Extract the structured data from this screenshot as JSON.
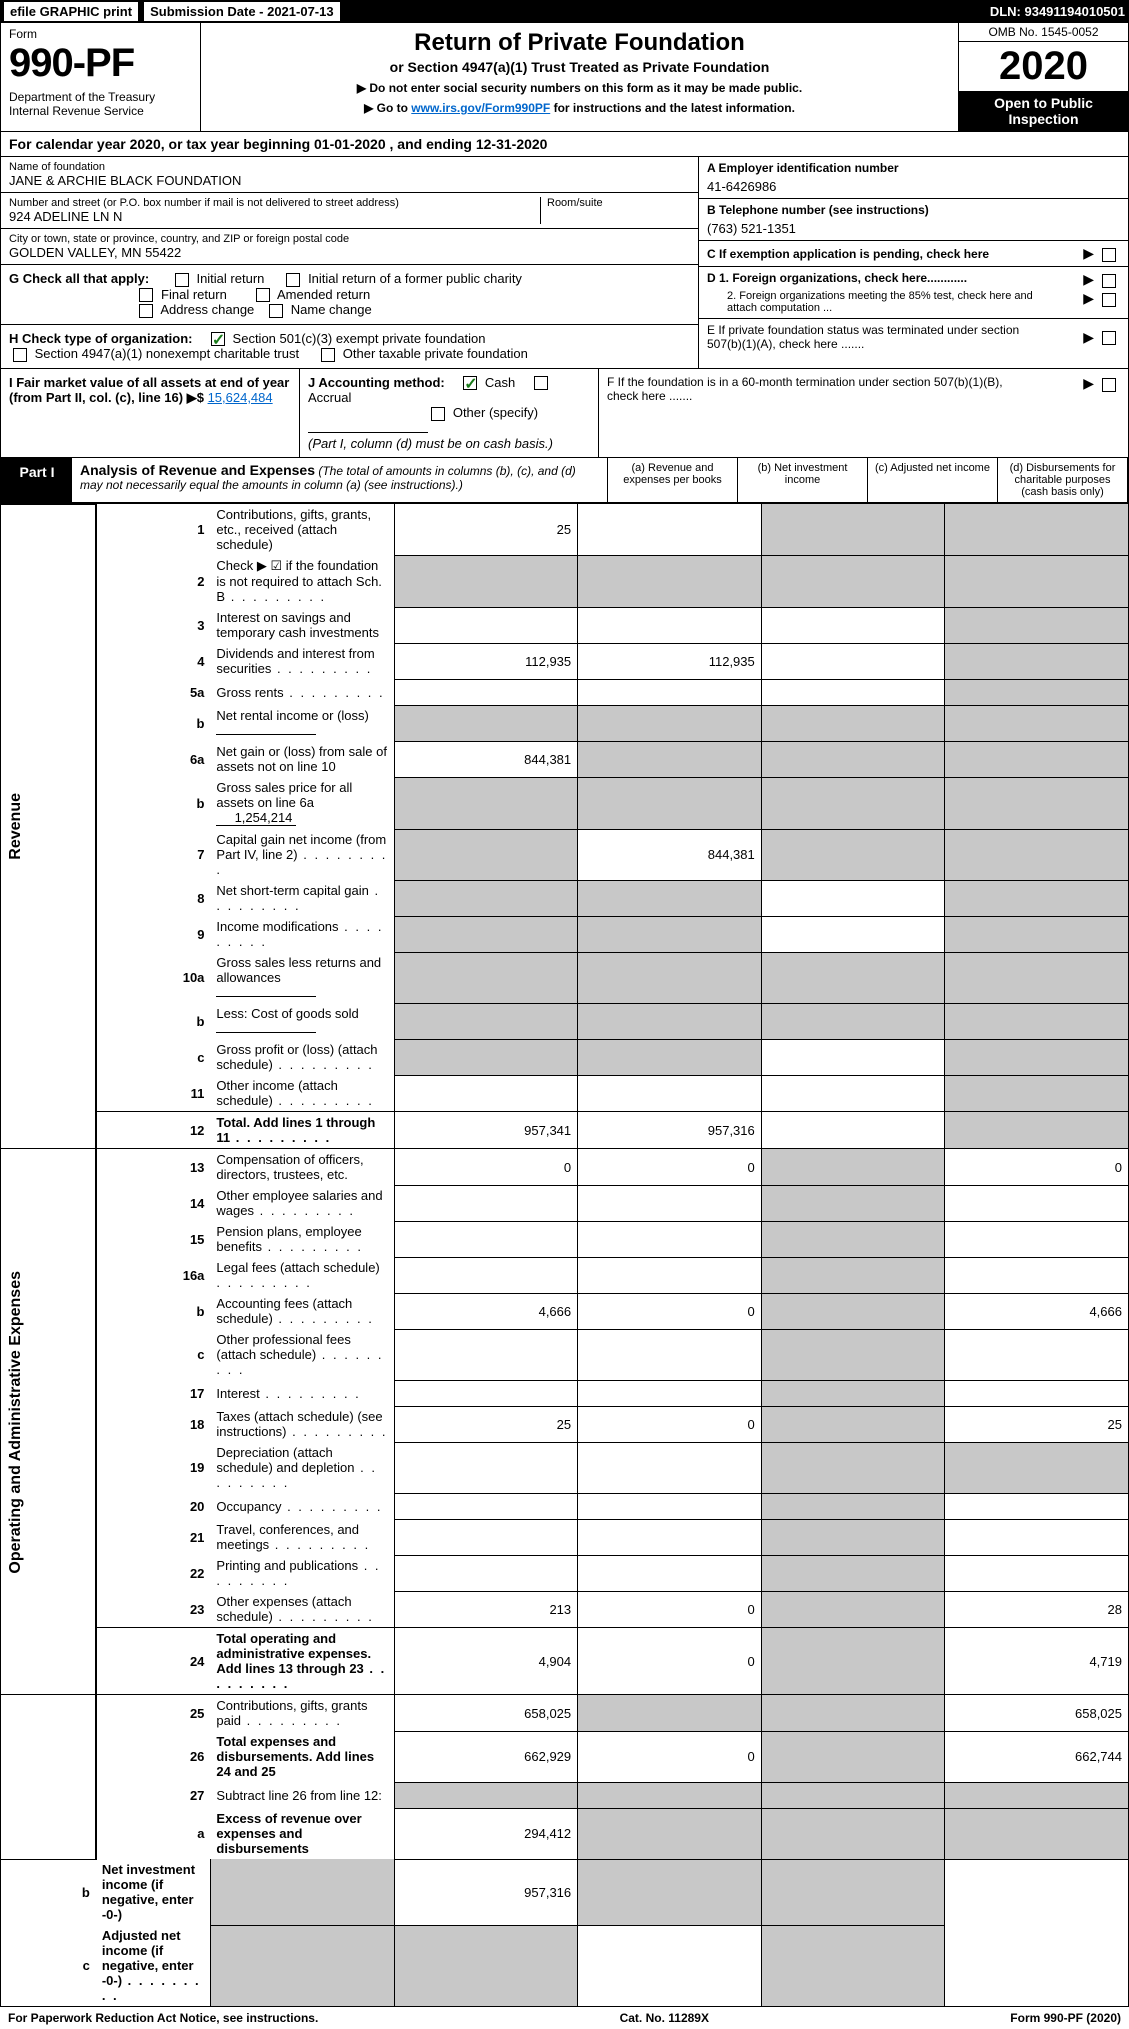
{
  "topbar": {
    "efile": "efile GRAPHIC print",
    "submission": "Submission Date - 2021-07-13",
    "dln": "DLN: 93491194010501"
  },
  "header": {
    "form_label": "Form",
    "form_no": "990-PF",
    "dept": "Department of the Treasury\nInternal Revenue Service",
    "title": "Return of Private Foundation",
    "subtitle": "or Section 4947(a)(1) Trust Treated as Private Foundation",
    "note1": "▶ Do not enter social security numbers on this form as it may be made public.",
    "note2_prefix": "▶ Go to ",
    "note2_link": "www.irs.gov/Form990PF",
    "note2_suffix": " for instructions and the latest information.",
    "omb": "OMB No. 1545-0052",
    "year": "2020",
    "open": "Open to Public Inspection"
  },
  "cal_year": "For calendar year 2020, or tax year beginning 01-01-2020               , and ending 12-31-2020",
  "info": {
    "name_label": "Name of foundation",
    "name": "JANE & ARCHIE BLACK FOUNDATION",
    "addr_label": "Number and street (or P.O. box number if mail is not delivered to street address)",
    "addr": "924 ADELINE LN N",
    "room_label": "Room/suite",
    "city_label": "City or town, state or province, country, and ZIP or foreign postal code",
    "city": "GOLDEN VALLEY, MN  55422",
    "ein_label": "A Employer identification number",
    "ein": "41-6426986",
    "phone_label": "B Telephone number (see instructions)",
    "phone": "(763) 521-1351",
    "c_label": "C If exemption application is pending, check here",
    "d1": "D 1. Foreign organizations, check here............",
    "d2": "2. Foreign organizations meeting the 85% test, check here and attach computation ...",
    "e_label": "E  If private foundation status was terminated under section 507(b)(1)(A), check here .......",
    "f_label": "F  If the foundation is in a 60-month termination under section 507(b)(1)(B), check here .......",
    "g_label": "G Check all that apply:",
    "g_opts": [
      "Initial return",
      "Initial return of a former public charity",
      "Final return",
      "Amended return",
      "Address change",
      "Name change"
    ],
    "h_label": "H Check type of organization:",
    "h_opts": [
      "Section 501(c)(3) exempt private foundation",
      "Section 4947(a)(1) nonexempt charitable trust",
      "Other taxable private foundation"
    ],
    "i_label": "I Fair market value of all assets at end of year (from Part II, col. (c), line 16) ▶$",
    "i_val": "15,624,484",
    "j_label": "J Accounting method:",
    "j_opts": [
      "Cash",
      "Accrual",
      "Other (specify)"
    ],
    "j_note": "(Part I, column (d) must be on cash basis.)"
  },
  "part1": {
    "tab": "Part I",
    "title": "Analysis of Revenue and Expenses",
    "title_note": "(The total of amounts in columns (b), (c), and (d) may not necessarily equal the amounts in column (a) (see instructions).)",
    "cols": [
      "(a)  Revenue and expenses per books",
      "(b)  Net investment income",
      "(c)  Adjusted net income",
      "(d)  Disbursements for charitable purposes (cash basis only)"
    ]
  },
  "rows": [
    {
      "n": "1",
      "d": "Contributions, gifts, grants, etc., received (attach schedule)",
      "a": "25",
      "b": "",
      "c": "s",
      "dd": "s"
    },
    {
      "n": "2",
      "d": "Check ▶ ☑ if the foundation is not required to attach Sch. B",
      "a": "s",
      "b": "s",
      "c": "s",
      "dd": "s",
      "dots": true
    },
    {
      "n": "3",
      "d": "Interest on savings and temporary cash investments",
      "a": "",
      "b": "",
      "c": "",
      "dd": "s"
    },
    {
      "n": "4",
      "d": "Dividends and interest from securities",
      "a": "112,935",
      "b": "112,935",
      "c": "",
      "dd": "s",
      "dots": true
    },
    {
      "n": "5a",
      "d": "Gross rents",
      "a": "",
      "b": "",
      "c": "",
      "dd": "s",
      "dots": true
    },
    {
      "n": "b",
      "d": "Net rental income or (loss)",
      "a": "s",
      "b": "s",
      "c": "s",
      "dd": "s",
      "line": true
    },
    {
      "n": "6a",
      "d": "Net gain or (loss) from sale of assets not on line 10",
      "a": "844,381",
      "b": "s",
      "c": "s",
      "dd": "s"
    },
    {
      "n": "b",
      "d": "Gross sales price for all assets on line 6a",
      "a": "s",
      "b": "s",
      "c": "s",
      "dd": "s",
      "inline": "1,254,214"
    },
    {
      "n": "7",
      "d": "Capital gain net income (from Part IV, line 2)",
      "a": "s",
      "b": "844,381",
      "c": "s",
      "dd": "s",
      "dots": true
    },
    {
      "n": "8",
      "d": "Net short-term capital gain",
      "a": "s",
      "b": "s",
      "c": "",
      "dd": "s",
      "dots": true
    },
    {
      "n": "9",
      "d": "Income modifications",
      "a": "s",
      "b": "s",
      "c": "",
      "dd": "s",
      "dots": true
    },
    {
      "n": "10a",
      "d": "Gross sales less returns and allowances",
      "a": "s",
      "b": "s",
      "c": "s",
      "dd": "s",
      "line": true
    },
    {
      "n": "b",
      "d": "Less: Cost of goods sold",
      "a": "s",
      "b": "s",
      "c": "s",
      "dd": "s",
      "line": true,
      "dots": true
    },
    {
      "n": "c",
      "d": "Gross profit or (loss) (attach schedule)",
      "a": "s",
      "b": "s",
      "c": "",
      "dd": "s",
      "dots": true
    },
    {
      "n": "11",
      "d": "Other income (attach schedule)",
      "a": "",
      "b": "",
      "c": "",
      "dd": "s",
      "dots": true
    },
    {
      "n": "12",
      "d": "Total. Add lines 1 through 11",
      "a": "957,341",
      "b": "957,316",
      "c": "",
      "dd": "s",
      "bold": true,
      "dots": true
    },
    {
      "n": "13",
      "d": "Compensation of officers, directors, trustees, etc.",
      "a": "0",
      "b": "0",
      "c": "s",
      "dd": "0"
    },
    {
      "n": "14",
      "d": "Other employee salaries and wages",
      "a": "",
      "b": "",
      "c": "s",
      "dd": "",
      "dots": true
    },
    {
      "n": "15",
      "d": "Pension plans, employee benefits",
      "a": "",
      "b": "",
      "c": "s",
      "dd": "",
      "dots": true
    },
    {
      "n": "16a",
      "d": "Legal fees (attach schedule)",
      "a": "",
      "b": "",
      "c": "s",
      "dd": "",
      "dots": true
    },
    {
      "n": "b",
      "d": "Accounting fees (attach schedule)",
      "a": "4,666",
      "b": "0",
      "c": "s",
      "dd": "4,666",
      "dots": true
    },
    {
      "n": "c",
      "d": "Other professional fees (attach schedule)",
      "a": "",
      "b": "",
      "c": "s",
      "dd": "",
      "dots": true
    },
    {
      "n": "17",
      "d": "Interest",
      "a": "",
      "b": "",
      "c": "s",
      "dd": "",
      "dots": true
    },
    {
      "n": "18",
      "d": "Taxes (attach schedule) (see instructions)",
      "a": "25",
      "b": "0",
      "c": "s",
      "dd": "25",
      "dots": true
    },
    {
      "n": "19",
      "d": "Depreciation (attach schedule) and depletion",
      "a": "",
      "b": "",
      "c": "s",
      "dd": "s",
      "dots": true
    },
    {
      "n": "20",
      "d": "Occupancy",
      "a": "",
      "b": "",
      "c": "s",
      "dd": "",
      "dots": true
    },
    {
      "n": "21",
      "d": "Travel, conferences, and meetings",
      "a": "",
      "b": "",
      "c": "s",
      "dd": "",
      "dots": true
    },
    {
      "n": "22",
      "d": "Printing and publications",
      "a": "",
      "b": "",
      "c": "s",
      "dd": "",
      "dots": true
    },
    {
      "n": "23",
      "d": "Other expenses (attach schedule)",
      "a": "213",
      "b": "0",
      "c": "s",
      "dd": "28",
      "dots": true
    },
    {
      "n": "24",
      "d": "Total operating and administrative expenses. Add lines 13 through 23",
      "a": "4,904",
      "b": "0",
      "c": "s",
      "dd": "4,719",
      "bold": true,
      "dots": true
    },
    {
      "n": "25",
      "d": "Contributions, gifts, grants paid",
      "a": "658,025",
      "b": "s",
      "c": "s",
      "dd": "658,025",
      "dots": true
    },
    {
      "n": "26",
      "d": "Total expenses and disbursements. Add lines 24 and 25",
      "a": "662,929",
      "b": "0",
      "c": "s",
      "dd": "662,744",
      "bold": true
    },
    {
      "n": "27",
      "d": "Subtract line 26 from line 12:",
      "a": "s",
      "b": "s",
      "c": "s",
      "dd": "s"
    },
    {
      "n": "a",
      "d": "Excess of revenue over expenses and disbursements",
      "a": "294,412",
      "b": "s",
      "c": "s",
      "dd": "s",
      "bold": true
    },
    {
      "n": "b",
      "d": "Net investment income (if negative, enter -0-)",
      "a": "s",
      "b": "957,316",
      "c": "s",
      "dd": "s",
      "bold": true
    },
    {
      "n": "c",
      "d": "Adjusted net income (if negative, enter -0-)",
      "a": "s",
      "b": "s",
      "c": "",
      "dd": "s",
      "bold": true,
      "dots": true
    }
  ],
  "side_labels": {
    "revenue": "Revenue",
    "expenses": "Operating and Administrative Expenses"
  },
  "footer": {
    "left": "For Paperwork Reduction Act Notice, see instructions.",
    "center": "Cat. No. 11289X",
    "right": "Form 990-PF (2020)"
  }
}
